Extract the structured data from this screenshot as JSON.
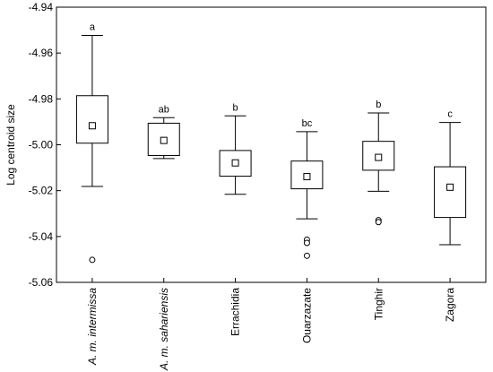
{
  "chart_data": {
    "type": "box",
    "ylabel": "Log centroid size",
    "xlabel": "",
    "ylim": [
      -5.06,
      -4.94
    ],
    "yticks": [
      -4.94,
      -4.96,
      -4.98,
      -5.0,
      -5.02,
      -5.04,
      -5.06
    ],
    "ytick_labels": [
      "-4.94",
      "-4.96",
      "-4.98",
      "-5.00",
      "-5.02",
      "-5.04",
      "-5.06"
    ],
    "grid": false,
    "categories": [
      {
        "label": "A. m. intermissa",
        "italic": true
      },
      {
        "label": "A. m. sahariensis",
        "italic": true
      },
      {
        "label": "Errachidia",
        "italic": false
      },
      {
        "label": "Ouarzazate",
        "italic": false
      },
      {
        "label": "Tinghir",
        "italic": false
      },
      {
        "label": "Zagora",
        "italic": false
      }
    ],
    "boxes": [
      {
        "mean": -4.9917,
        "q1": -4.9993,
        "q3": -4.9786,
        "whisker_low": -5.0182,
        "whisker_high": -4.9523,
        "outliers": [
          -5.0502
        ],
        "letter": "a"
      },
      {
        "mean": -4.9981,
        "q1": -5.0047,
        "q3": -4.9906,
        "whisker_low": -5.006,
        "whisker_high": -4.9882,
        "outliers": [],
        "letter": "ab"
      },
      {
        "mean": -5.0079,
        "q1": -5.0137,
        "q3": -5.0025,
        "whisker_low": -5.0216,
        "whisker_high": -4.9874,
        "outliers": [],
        "letter": "b"
      },
      {
        "mean": -5.0139,
        "q1": -5.0192,
        "q3": -5.0071,
        "whisker_low": -5.0323,
        "whisker_high": -4.9943,
        "outliers": [
          -5.0414,
          -5.0428,
          -5.0484
        ],
        "letter": "bc"
      },
      {
        "mean": -5.0055,
        "q1": -5.0111,
        "q3": -4.9985,
        "whisker_low": -5.0203,
        "whisker_high": -4.9861,
        "outliers": [
          -5.0329,
          -5.0337
        ],
        "letter": "b"
      },
      {
        "mean": -5.0185,
        "q1": -5.0317,
        "q3": -5.0096,
        "whisker_low": -5.0436,
        "whisker_high": -4.9903,
        "outliers": [],
        "letter": "c"
      }
    ]
  }
}
